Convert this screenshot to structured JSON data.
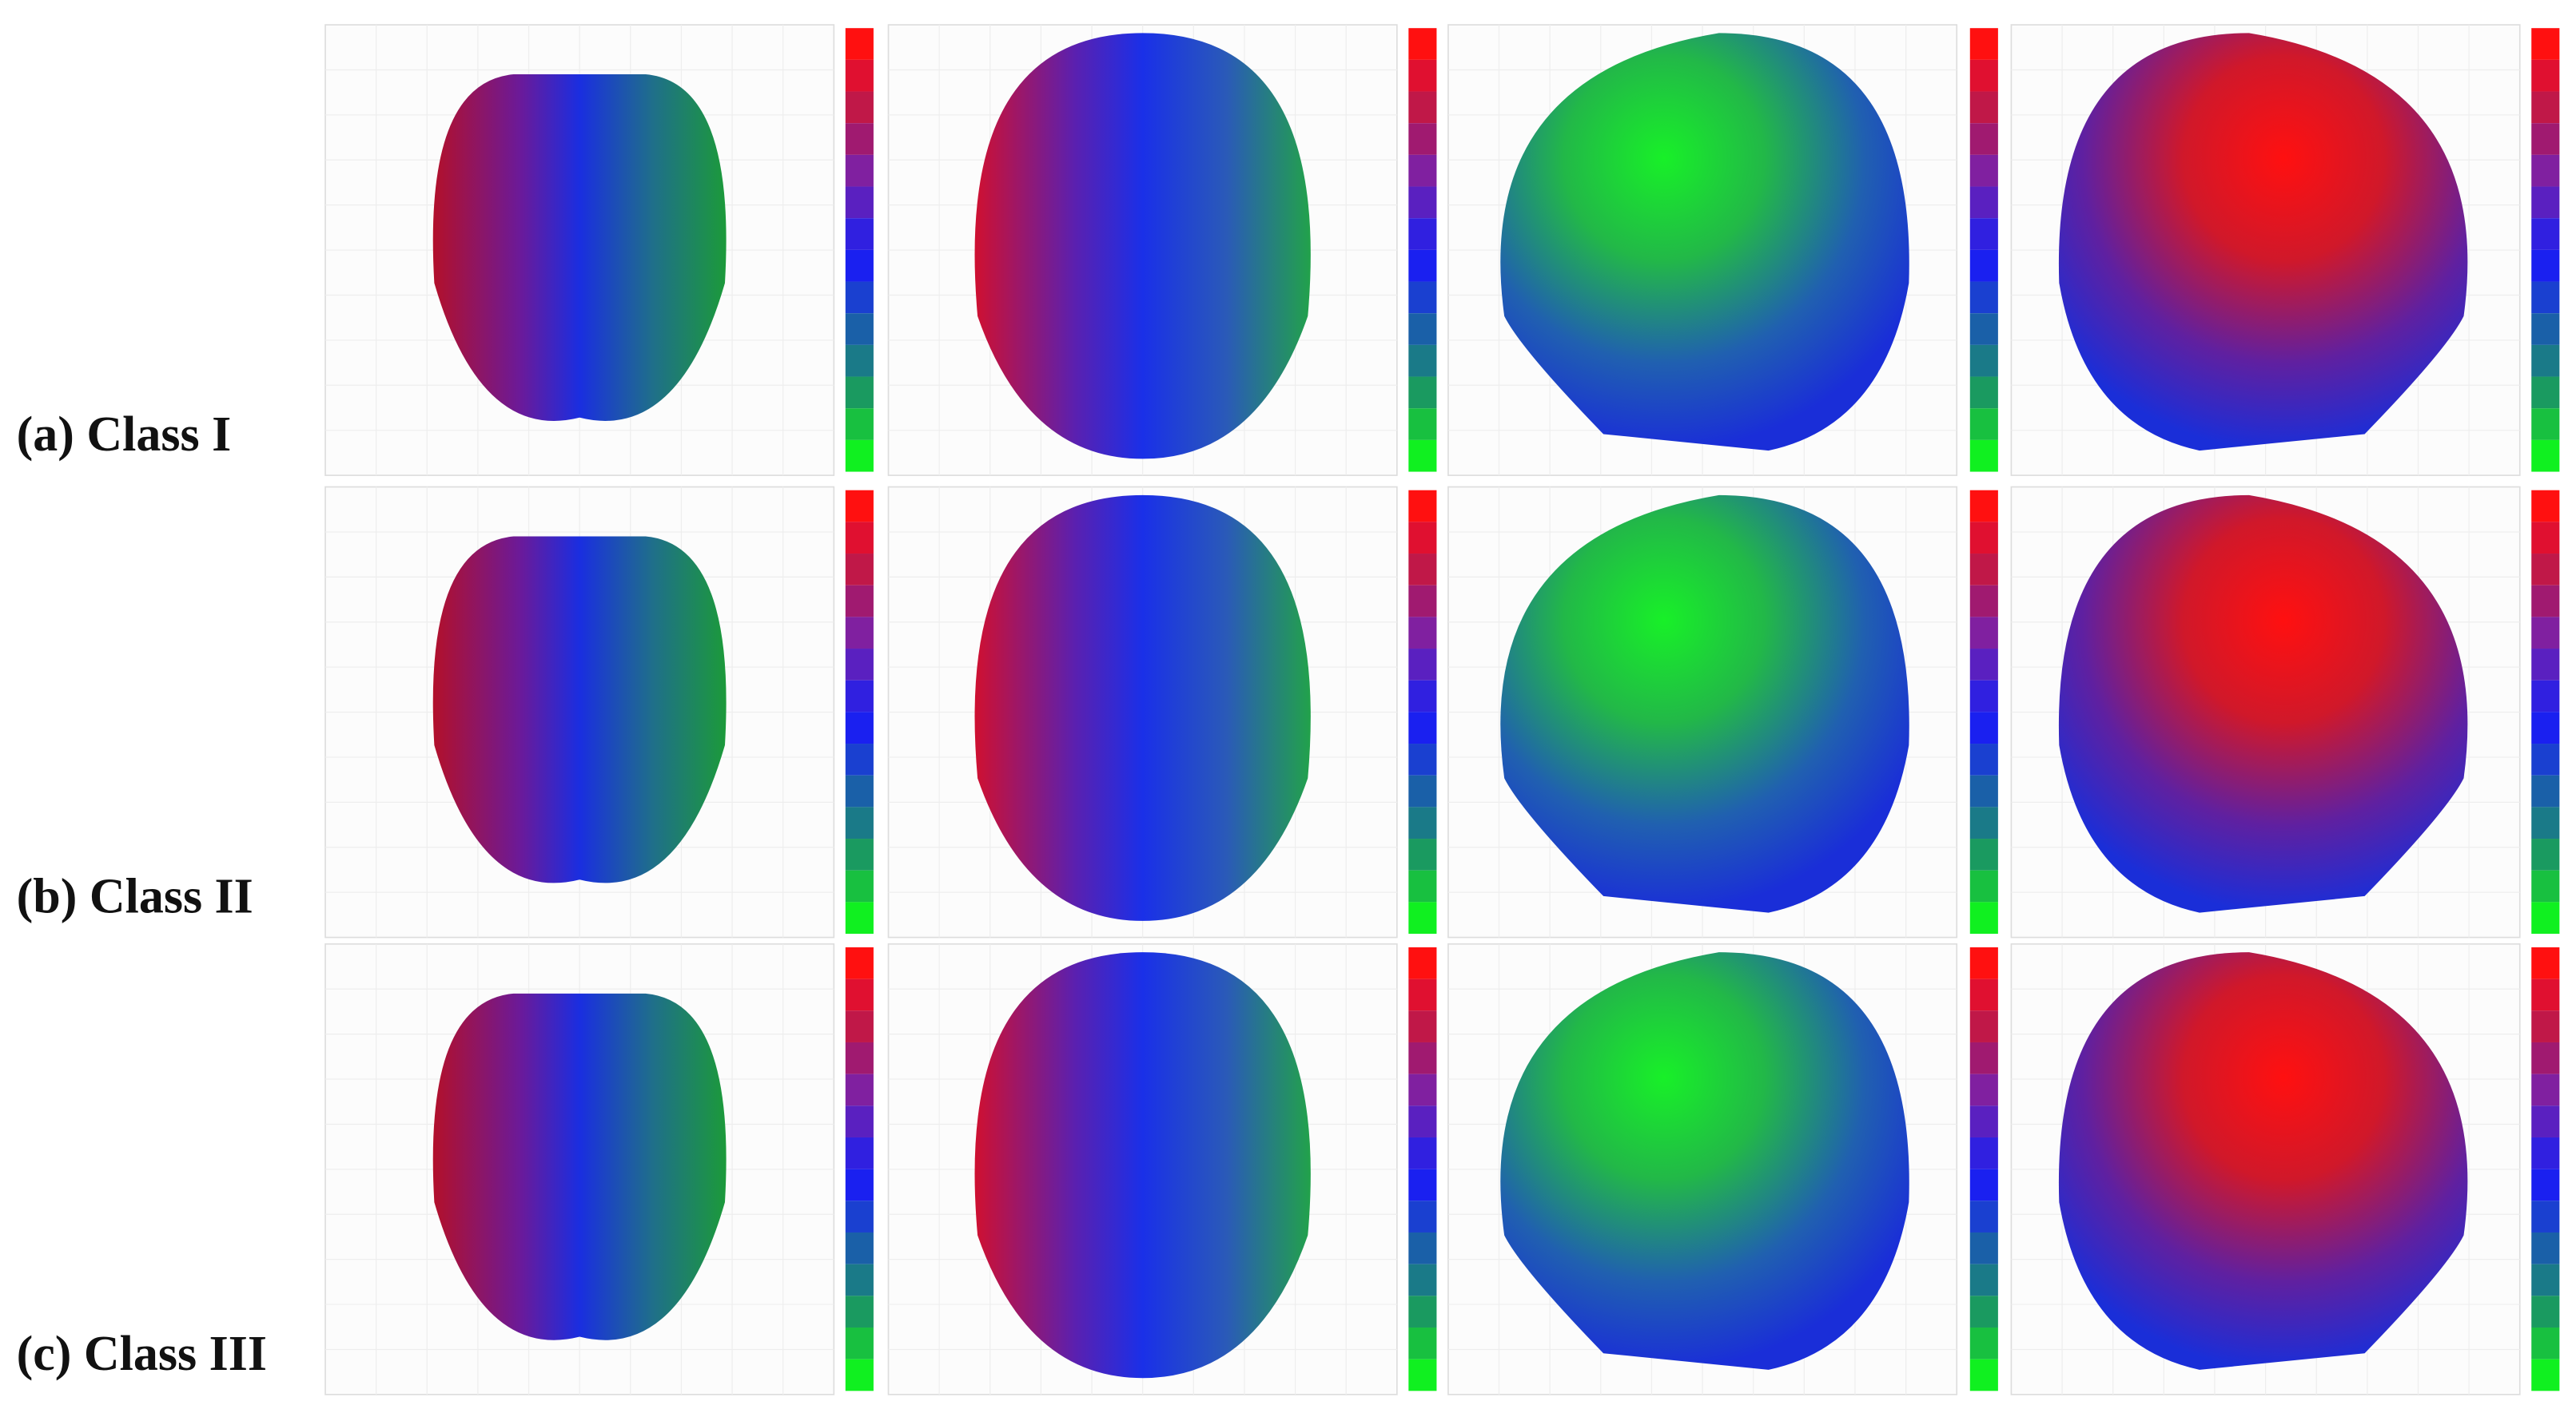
{
  "rows": [
    {
      "label": "(a) Class I"
    },
    {
      "label": "(b) Class II"
    },
    {
      "label": "(c) Class III"
    }
  ]
}
